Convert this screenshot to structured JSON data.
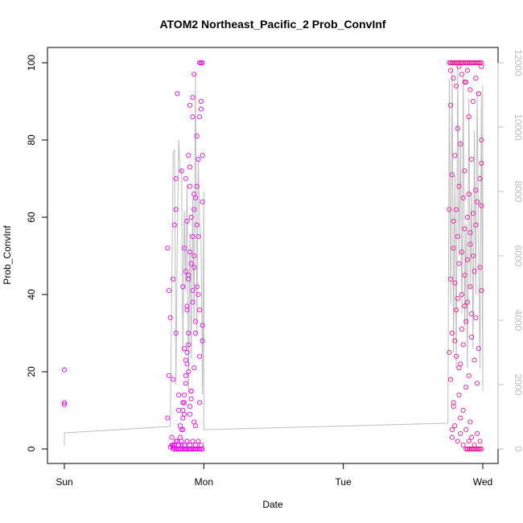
{
  "chart_data": {
    "type": "scatter",
    "title": "ATOM2 Northeast_Pacific_2 Prob_ConvInf",
    "xlabel": "Date",
    "ylabel": "Prob_ConvInf",
    "xlim": [
      0,
      3
    ],
    "x_ticks": [
      {
        "value": 0,
        "label": "Sun"
      },
      {
        "value": 1,
        "label": "Mon"
      },
      {
        "value": 2,
        "label": "Tue"
      },
      {
        "value": 3,
        "label": "Wed"
      }
    ],
    "ylim": [
      0,
      100
    ],
    "y_ticks": [
      0,
      20,
      40,
      60,
      80,
      100
    ],
    "y2lim": [
      0,
      12000
    ],
    "y2_ticks": [
      0,
      2000,
      4000,
      6000,
      8000,
      10000,
      12000
    ],
    "grid": false,
    "colors": {
      "points_magenta": "#ee00ee",
      "points_pink": "#ee1199",
      "line": "#bdbdbd",
      "axis": "#000000",
      "axis2": "#bdbdbd"
    },
    "series": [
      {
        "type": "scatter",
        "color": "#ee00ee",
        "x": [
          0.0,
          0.0,
          0.0,
          0.74,
          0.74,
          0.75,
          0.75,
          0.76,
          0.76,
          0.77,
          0.77,
          0.78,
          0.78,
          0.78,
          0.79,
          0.79,
          0.8,
          0.8,
          0.8,
          0.81,
          0.81,
          0.82,
          0.82,
          0.83,
          0.83,
          0.84,
          0.84,
          0.85,
          0.85,
          0.85,
          0.86,
          0.86,
          0.86,
          0.87,
          0.87,
          0.87,
          0.88,
          0.88,
          0.88,
          0.89,
          0.89,
          0.89,
          0.9,
          0.9,
          0.9,
          0.91,
          0.91,
          0.91,
          0.92,
          0.92,
          0.93,
          0.93,
          0.93,
          0.94,
          0.94,
          0.95,
          0.95,
          0.96,
          0.96,
          0.97,
          0.97,
          0.98,
          0.98,
          0.99,
          0.99,
          0.78,
          0.79,
          0.8,
          0.81,
          0.82,
          0.83,
          0.84,
          0.85,
          0.86,
          0.87,
          0.88,
          0.89,
          0.9,
          0.91,
          0.92,
          0.93,
          0.94,
          0.95,
          0.96,
          0.97,
          0.98,
          0.99,
          0.84,
          0.85,
          0.85,
          0.86,
          0.86,
          0.87,
          0.87,
          0.88,
          0.88,
          0.89,
          0.89,
          0.9,
          0.9,
          0.91,
          0.91,
          0.92,
          0.92,
          0.93,
          0.93,
          0.94,
          0.87,
          0.88,
          0.89,
          0.9,
          0.91,
          0.92,
          0.93,
          0.94,
          0.95,
          0.96,
          0.97,
          0.98,
          0.99,
          0.97,
          0.98,
          0.99,
          0.78,
          0.8,
          0.82,
          0.84,
          0.86,
          0.88,
          0.9,
          0.92,
          0.94,
          0.96,
          0.98,
          0.93,
          0.95,
          0.97,
          0.99
        ],
        "y": [
          20.5,
          11.5,
          12,
          8,
          52,
          41,
          19,
          34,
          0.5,
          1,
          3,
          18,
          44,
          0.5,
          58,
          1,
          62,
          30,
          70,
          92,
          2,
          14,
          10,
          6,
          3,
          72,
          1,
          42,
          5,
          12,
          52,
          26,
          9,
          0,
          70,
          46,
          59,
          36,
          2,
          76,
          44,
          20,
          68,
          89,
          73,
          60,
          15,
          0,
          91,
          86,
          66,
          50,
          7,
          33,
          30,
          58,
          42,
          40,
          55,
          24,
          12,
          100,
          88,
          76,
          32,
          0,
          0,
          0,
          0,
          0,
          0,
          0,
          0,
          0,
          0,
          0,
          0,
          0,
          0,
          0,
          0,
          0,
          0,
          0,
          0,
          0,
          0,
          5,
          8,
          10,
          12,
          14,
          17,
          19,
          22,
          25,
          27,
          30,
          9,
          11,
          13,
          15,
          38,
          41,
          47,
          21,
          6,
          23,
          37,
          45,
          51,
          48,
          55,
          62,
          65,
          68,
          75,
          100,
          100,
          100,
          86,
          90,
          64,
          1,
          2,
          1,
          2,
          1,
          2,
          1,
          2,
          1,
          2,
          1,
          97,
          81,
          36,
          28
        ]
      },
      {
        "type": "scatter",
        "color": "#ee1199",
        "x": [
          2.76,
          2.76,
          2.77,
          2.77,
          2.77,
          2.78,
          2.78,
          2.78,
          2.79,
          2.79,
          2.79,
          2.8,
          2.8,
          2.8,
          2.81,
          2.81,
          2.81,
          2.82,
          2.82,
          2.82,
          2.83,
          2.83,
          2.83,
          2.84,
          2.84,
          2.84,
          2.85,
          2.85,
          2.85,
          2.86,
          2.86,
          2.86,
          2.87,
          2.87,
          2.87,
          2.88,
          2.88,
          2.88,
          2.89,
          2.89,
          2.89,
          2.9,
          2.9,
          2.9,
          2.91,
          2.91,
          2.91,
          2.92,
          2.92,
          2.92,
          2.93,
          2.93,
          2.94,
          2.94,
          2.95,
          2.95,
          2.96,
          2.96,
          2.97,
          2.97,
          2.98,
          2.98,
          2.99,
          2.99,
          2.99,
          2.76,
          2.77,
          2.78,
          2.79,
          2.8,
          2.81,
          2.82,
          2.83,
          2.84,
          2.85,
          2.86,
          2.87,
          2.88,
          2.89,
          2.9,
          2.91,
          2.92,
          2.93,
          2.94,
          2.95,
          2.96,
          2.97,
          2.98,
          2.99,
          2.88,
          2.89,
          2.9,
          2.91,
          2.92,
          2.93,
          2.94,
          2.95,
          2.96,
          2.97,
          2.98,
          2.99,
          2.77,
          2.79,
          2.81,
          2.83,
          2.85,
          2.87,
          2.89,
          2.91,
          2.93,
          2.95,
          2.97,
          2.99,
          2.78,
          2.8,
          2.82,
          2.84,
          2.86,
          2.88,
          2.9,
          2.92,
          2.94,
          2.96,
          2.98,
          2.79,
          2.83,
          2.87,
          2.91,
          2.95,
          2.99
        ],
        "y": [
          62,
          25,
          44,
          18,
          89,
          30,
          5,
          71,
          59,
          52,
          12,
          43,
          28,
          76,
          36,
          62,
          24,
          39,
          55,
          83,
          14,
          68,
          48,
          22,
          8,
          79,
          51,
          40,
          31,
          65,
          10,
          27,
          57,
          45,
          72,
          33,
          16,
          95,
          49,
          60,
          38,
          86,
          19,
          66,
          42,
          7,
          53,
          29,
          75,
          35,
          61,
          50,
          46,
          23,
          34,
          58,
          64,
          17,
          92,
          26,
          70,
          47,
          63,
          74,
          80,
          100,
          100,
          100,
          100,
          100,
          100,
          100,
          100,
          100,
          100,
          100,
          100,
          100,
          100,
          100,
          100,
          100,
          100,
          100,
          100,
          100,
          100,
          100,
          100,
          0,
          0,
          0,
          0,
          0,
          0,
          0,
          0,
          0,
          0,
          0,
          0,
          98,
          96,
          94,
          99,
          97,
          95,
          98,
          93,
          90,
          96,
          92,
          99,
          3,
          6,
          2,
          4,
          1,
          5,
          2,
          3,
          1,
          4,
          2,
          11,
          21,
          37,
          56,
          67,
          41
        ]
      }
    ],
    "line_series": {
      "type": "line",
      "axis": "right",
      "color": "#bdbdbd",
      "x": [
        0.0,
        0.0,
        0.76,
        0.78,
        0.79,
        0.8,
        0.81,
        0.82,
        0.83,
        0.84,
        0.85,
        0.86,
        0.87,
        0.88,
        0.89,
        0.9,
        0.91,
        0.92,
        0.93,
        0.94,
        0.95,
        0.96,
        0.97,
        0.98,
        0.99,
        1.0,
        1.0,
        1.0,
        2.75,
        2.76,
        2.77,
        2.78,
        2.79,
        2.8,
        2.81,
        2.82,
        2.83,
        2.84,
        2.85,
        2.86,
        2.87,
        2.88,
        2.89,
        2.9,
        2.91,
        2.92,
        2.93,
        2.94,
        2.95,
        2.96,
        2.97,
        2.98,
        2.99,
        3.0,
        3.0
      ],
      "y": [
        100,
        500,
        700,
        9200,
        9300,
        2000,
        6500,
        9600,
        8600,
        8700,
        3000,
        7400,
        4900,
        8200,
        1700,
        6700,
        2800,
        7800,
        4000,
        11700,
        3500,
        9000,
        7000,
        6500,
        1700,
        8000,
        600,
        600,
        800,
        11500,
        4500,
        11800,
        3000,
        8500,
        2500,
        11900,
        6000,
        9600,
        4200,
        11600,
        3800,
        7000,
        2500,
        10900,
        5000,
        8000,
        3100,
        9900,
        4800,
        11000,
        6600,
        2500,
        11000,
        1800,
        11300
      ]
    }
  }
}
